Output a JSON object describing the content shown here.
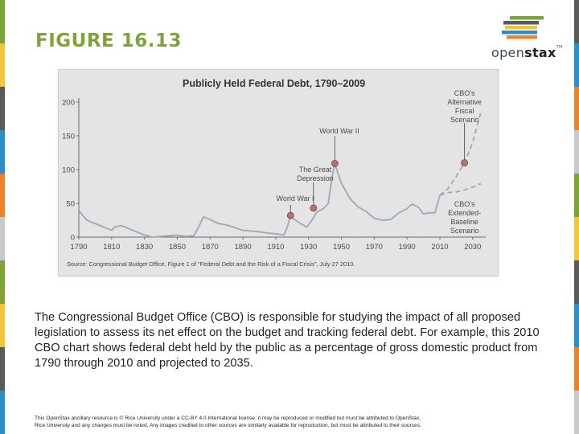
{
  "slide": {
    "title": "FIGURE 16.13",
    "logo_text_light": "open",
    "logo_text_bold": "stax",
    "logo_tm": "TM",
    "caption": "The Congressional Budget Office (CBO) is responsible for studying the impact of all proposed legislation to assess its net effect on the budget and tracking federal debt. For example, this 2010 CBO chart shows federal debt held by the public as a percentage of gross domestic product from 1790 through 2010 and projected to 2035.",
    "footer_line1": "This OpenStax ancillary resource is © Rice University under a CC-BY 4.0 International license; it may be reproduced or modified but must be attributed to OpenStax,",
    "footer_line2": "Rice University and any changes must be noted. Any images credited to other sources are similarly available for reproduction, but must be attributed to their sources.",
    "colors": {
      "title": "#7fa33a",
      "stripes": [
        "#7fa33a",
        "#f2c63a",
        "#5a5a5a",
        "#2c8ec5",
        "#e7852f",
        "#c9c9c9"
      ],
      "logo_bars": [
        "#7fa33a",
        "#5a5a5a",
        "#f2c63a",
        "#2c8ec5",
        "#e7852f"
      ]
    }
  },
  "chart_data": {
    "type": "line",
    "title": "Publicly Held Federal Debt, 1790–2009",
    "source": "Source: Congressional Budget Office, Figure 1 of \"Federal Debt and the Risk of a Fiscal Crisis\", July 27 2010.",
    "xlabel": "",
    "ylabel": "",
    "xlim": [
      1790,
      2035
    ],
    "ylim": [
      0,
      200
    ],
    "x_ticks": [
      1790,
      1810,
      1830,
      1850,
      1870,
      1890,
      1910,
      1930,
      1950,
      1970,
      1990,
      2010,
      2030
    ],
    "y_ticks": [
      0,
      50,
      100,
      150,
      200
    ],
    "grid": false,
    "line_color": "#9aa9b7",
    "series": [
      {
        "style": "solid",
        "x": [
          1790,
          1792,
          1795,
          1800,
          1805,
          1810,
          1812,
          1816,
          1820,
          1825,
          1830,
          1835,
          1840,
          1845,
          1850,
          1855,
          1860,
          1863,
          1866,
          1870,
          1875,
          1880,
          1885,
          1890,
          1895,
          1900,
          1905,
          1910,
          1915,
          1917,
          1919,
          1921,
          1925,
          1929,
          1932,
          1935,
          1939,
          1942,
          1944,
          1946,
          1948,
          1950,
          1955,
          1960,
          1965,
          1970,
          1975,
          1980,
          1985,
          1990,
          1993,
          1997,
          2000,
          2003,
          2007,
          2009,
          2010
        ],
        "values": [
          40,
          33,
          25,
          20,
          15,
          10,
          15,
          17,
          13,
          8,
          3,
          0,
          1,
          2,
          3,
          1,
          2,
          15,
          30,
          26,
          20,
          18,
          14,
          10,
          9,
          8,
          6,
          5,
          3,
          15,
          32,
          27,
          20,
          15,
          25,
          37,
          42,
          50,
          85,
          109,
          94,
          80,
          58,
          45,
          38,
          28,
          25,
          26,
          36,
          42,
          49,
          44,
          34,
          36,
          36,
          53,
          62
        ]
      },
      {
        "name": "CBO's Alternative Fiscal Scenario",
        "style": "dashed",
        "x": [
          2010,
          2015,
          2020,
          2025,
          2030,
          2035
        ],
        "values": [
          62,
          72,
          90,
          110,
          140,
          185
        ]
      },
      {
        "name": "CBO's Extended-Baseline Scenario",
        "style": "dashed",
        "x": [
          2010,
          2015,
          2020,
          2025,
          2030,
          2035
        ],
        "values": [
          62,
          66,
          67,
          70,
          74,
          79
        ]
      }
    ],
    "annotations": [
      {
        "label": "World War I",
        "x": 1919,
        "y": 32
      },
      {
        "label": "The Great Depression",
        "x": 1933,
        "y": 43
      },
      {
        "label": "World War II",
        "x": 1946,
        "y": 109
      },
      {
        "label": "CBO's Alternative Fiscal Scenario",
        "x": 2025,
        "y": 110
      },
      {
        "label": "CBO's Extended-Baseline Scenario",
        "x": 2025,
        "y": 70
      }
    ]
  }
}
